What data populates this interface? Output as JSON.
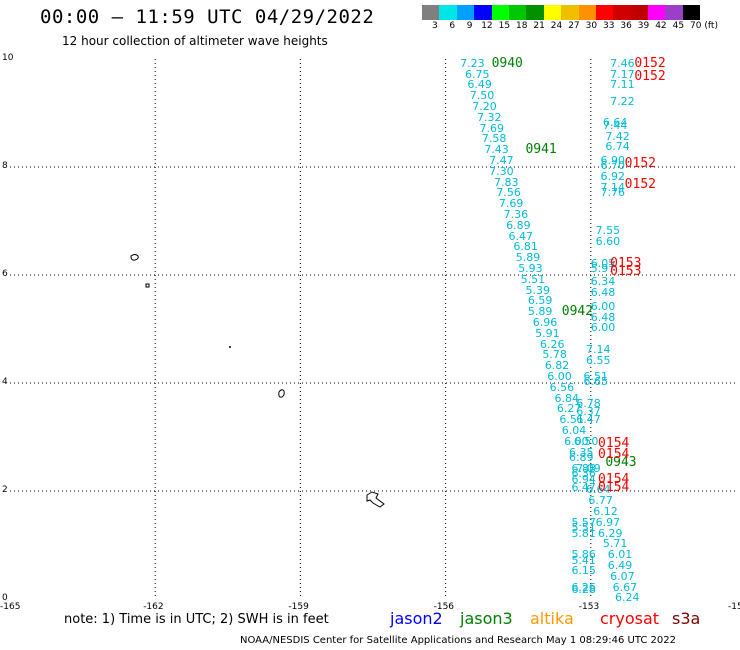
{
  "header": {
    "title": "00:00 — 11:59 UTC 04/29/2022",
    "subtitle": "12 hour collection of altimeter wave heights"
  },
  "color_scale": {
    "colors": [
      "#7f7f7f",
      "#00e5e5",
      "#00a0ff",
      "#0000ff",
      "#00ff00",
      "#00c800",
      "#009000",
      "#ffff00",
      "#f0c000",
      "#ff9000",
      "#ff0000",
      "#d00000",
      "#c00000",
      "#ff00ff",
      "#9a3fc8",
      "#000000"
    ],
    "labels": [
      "3",
      "6",
      "9",
      "12",
      "15",
      "18",
      "21",
      "24",
      "27",
      "30",
      "33",
      "36",
      "39",
      "42",
      "45",
      "70"
    ],
    "unit": "(ft)"
  },
  "axes": {
    "x_ticks": [
      "-165",
      "-162",
      "-159",
      "-156",
      "-153",
      "-15"
    ],
    "y_ticks": [
      "10",
      "8",
      "6",
      "4",
      "2",
      "0"
    ]
  },
  "chart_data": {
    "type": "scatter",
    "x_range": [
      -165,
      -150
    ],
    "y_range": [
      0,
      10
    ],
    "observations": [
      {
        "lon": -155.7,
        "lat": 9.93,
        "swh": "7.23"
      },
      {
        "lon": -155.6,
        "lat": 9.73,
        "swh": "6.75"
      },
      {
        "lon": -155.55,
        "lat": 9.53,
        "swh": "6.49"
      },
      {
        "lon": -155.5,
        "lat": 9.33,
        "swh": "7.50"
      },
      {
        "lon": -155.45,
        "lat": 9.13,
        "swh": "7.20"
      },
      {
        "lon": -155.35,
        "lat": 8.93,
        "swh": "7.32"
      },
      {
        "lon": -155.3,
        "lat": 8.73,
        "swh": "7.69"
      },
      {
        "lon": -155.25,
        "lat": 8.53,
        "swh": "7.58"
      },
      {
        "lon": -155.2,
        "lat": 8.33,
        "swh": "7.43"
      },
      {
        "lon": -155.1,
        "lat": 8.13,
        "swh": "7.47"
      },
      {
        "lon": -155.1,
        "lat": 7.93,
        "swh": "7.30"
      },
      {
        "lon": -155.0,
        "lat": 7.73,
        "swh": "7.83"
      },
      {
        "lon": -154.95,
        "lat": 7.53,
        "swh": "7.56"
      },
      {
        "lon": -154.9,
        "lat": 7.33,
        "swh": "7.69"
      },
      {
        "lon": -154.8,
        "lat": 7.13,
        "swh": "7.36"
      },
      {
        "lon": -154.75,
        "lat": 6.93,
        "swh": "6.89"
      },
      {
        "lon": -154.7,
        "lat": 6.73,
        "swh": "6.47"
      },
      {
        "lon": -154.6,
        "lat": 6.53,
        "swh": "6.81"
      },
      {
        "lon": -154.55,
        "lat": 6.33,
        "swh": "5.89"
      },
      {
        "lon": -154.5,
        "lat": 6.13,
        "swh": "5.93"
      },
      {
        "lon": -154.45,
        "lat": 5.93,
        "swh": "5.51"
      },
      {
        "lon": -154.35,
        "lat": 5.73,
        "swh": "5.39"
      },
      {
        "lon": -154.3,
        "lat": 5.53,
        "swh": "6.59"
      },
      {
        "lon": -154.3,
        "lat": 5.33,
        "swh": "5.89"
      },
      {
        "lon": -154.2,
        "lat": 5.13,
        "swh": "6.96"
      },
      {
        "lon": -154.15,
        "lat": 4.93,
        "swh": "5.91"
      },
      {
        "lon": -154.05,
        "lat": 4.73,
        "swh": "6.26"
      },
      {
        "lon": -154.0,
        "lat": 4.53,
        "swh": "5.78"
      },
      {
        "lon": -153.95,
        "lat": 4.33,
        "swh": "6.82"
      },
      {
        "lon": -153.9,
        "lat": 4.13,
        "swh": "6.00"
      },
      {
        "lon": -153.85,
        "lat": 3.93,
        "swh": "6.56"
      },
      {
        "lon": -153.75,
        "lat": 3.73,
        "swh": "6.84"
      },
      {
        "lon": -153.7,
        "lat": 3.53,
        "swh": "6.27"
      },
      {
        "lon": -153.65,
        "lat": 3.33,
        "swh": "6.51"
      },
      {
        "lon": -153.6,
        "lat": 3.13,
        "swh": "6.04"
      },
      {
        "lon": -153.55,
        "lat": 2.93,
        "swh": "6.00"
      },
      {
        "lon": -153.45,
        "lat": 2.73,
        "swh": "6.35"
      },
      {
        "lon": -153.45,
        "lat": 2.63,
        "swh": "6.89"
      },
      {
        "lon": -153.3,
        "lat": 2.43,
        "swh": "7.09"
      },
      {
        "lon": -153.4,
        "lat": 2.23,
        "swh": "6.94"
      },
      {
        "lon": -153.4,
        "lat": 2.08,
        "swh": "6.47"
      },
      {
        "lon": -153.1,
        "lat": 2.03,
        "swh": "6.64"
      },
      {
        "lon": -153.05,
        "lat": 1.83,
        "swh": "6.77"
      },
      {
        "lon": -152.95,
        "lat": 1.63,
        "swh": "6.12"
      },
      {
        "lon": -152.9,
        "lat": 1.43,
        "swh": "6.97"
      },
      {
        "lon": -152.85,
        "lat": 1.23,
        "swh": "6.29"
      },
      {
        "lon": -152.75,
        "lat": 1.03,
        "swh": "5.71"
      },
      {
        "lon": -152.65,
        "lat": 0.83,
        "swh": "6.01"
      },
      {
        "lon": -152.65,
        "lat": 0.63,
        "swh": "6.49"
      },
      {
        "lon": -152.6,
        "lat": 0.43,
        "swh": "6.07"
      },
      {
        "lon": -152.55,
        "lat": 0.23,
        "swh": "6.67"
      },
      {
        "lon": -152.5,
        "lat": 0.03,
        "swh": "6.24"
      },
      {
        "lon": -153.4,
        "lat": 1.43,
        "swh": "5.57"
      },
      {
        "lon": -153.4,
        "lat": 1.33,
        "swh": "5.51"
      },
      {
        "lon": -153.4,
        "lat": 1.23,
        "swh": "5.81"
      },
      {
        "lon": -153.4,
        "lat": 0.83,
        "swh": "5.86"
      },
      {
        "lon": -153.4,
        "lat": 0.73,
        "swh": "5.41"
      },
      {
        "lon": -153.4,
        "lat": 0.53,
        "swh": "6.15"
      },
      {
        "lon": -153.4,
        "lat": 0.23,
        "swh": "6.26"
      },
      {
        "lon": -153.4,
        "lat": 0.18,
        "swh": "6.28"
      },
      {
        "lon": -152.6,
        "lat": 9.93,
        "swh": "7.46"
      },
      {
        "lon": -152.6,
        "lat": 9.73,
        "swh": "7.17"
      },
      {
        "lon": -152.6,
        "lat": 9.53,
        "swh": "7.11"
      },
      {
        "lon": -152.6,
        "lat": 9.23,
        "swh": "7.22"
      },
      {
        "lon": -152.75,
        "lat": 8.83,
        "swh": "6.64"
      },
      {
        "lon": -152.75,
        "lat": 8.78,
        "swh": "7.44"
      },
      {
        "lon": -152.7,
        "lat": 8.58,
        "swh": "7.42"
      },
      {
        "lon": -152.7,
        "lat": 8.38,
        "swh": "6.74"
      },
      {
        "lon": -152.8,
        "lat": 8.13,
        "swh": "6.90"
      },
      {
        "lon": -152.8,
        "lat": 8.03,
        "swh": "6.70"
      },
      {
        "lon": -152.8,
        "lat": 7.83,
        "swh": "6.92"
      },
      {
        "lon": -152.8,
        "lat": 7.63,
        "swh": "7.14"
      },
      {
        "lon": -152.8,
        "lat": 7.53,
        "swh": "7.76"
      },
      {
        "lon": -152.9,
        "lat": 6.83,
        "swh": "7.55"
      },
      {
        "lon": -152.9,
        "lat": 6.63,
        "swh": "6.60"
      },
      {
        "lon": -153.0,
        "lat": 6.23,
        "swh": "6.05"
      },
      {
        "lon": -153.0,
        "lat": 6.13,
        "swh": "5.97"
      },
      {
        "lon": -153.0,
        "lat": 5.88,
        "swh": "6.34"
      },
      {
        "lon": -153.0,
        "lat": 5.68,
        "swh": "6.48"
      },
      {
        "lon": -153.0,
        "lat": 5.43,
        "swh": "6.00"
      },
      {
        "lon": -153.0,
        "lat": 5.23,
        "swh": "6.48"
      },
      {
        "lon": -153.0,
        "lat": 5.03,
        "swh": "6.00"
      },
      {
        "lon": -153.1,
        "lat": 4.63,
        "swh": "7.14"
      },
      {
        "lon": -153.1,
        "lat": 4.43,
        "swh": "6.55"
      },
      {
        "lon": -153.15,
        "lat": 4.13,
        "swh": "6.51"
      },
      {
        "lon": -153.15,
        "lat": 4.03,
        "swh": "6.65"
      },
      {
        "lon": -153.3,
        "lat": 3.63,
        "swh": "6.78"
      },
      {
        "lon": -153.3,
        "lat": 3.48,
        "swh": "6.37"
      },
      {
        "lon": -153.3,
        "lat": 3.33,
        "swh": "6.47"
      },
      {
        "lon": -153.35,
        "lat": 2.93,
        "swh": "6.50"
      },
      {
        "lon": -153.4,
        "lat": 2.43,
        "swh": "6.88"
      },
      {
        "lon": -153.4,
        "lat": 2.33,
        "swh": "6.36"
      }
    ],
    "track_labels": [
      {
        "lon": -155.05,
        "lat": 9.93,
        "label": "0940",
        "color": "#008000"
      },
      {
        "lon": -154.35,
        "lat": 8.33,
        "label": "0941",
        "color": "#008000"
      },
      {
        "lon": -153.6,
        "lat": 5.33,
        "label": "0942",
        "color": "#008000"
      },
      {
        "lon": -152.7,
        "lat": 2.53,
        "label": "0943",
        "color": "#008000"
      },
      {
        "lon": -152.1,
        "lat": 9.93,
        "label": "0152",
        "color": "#ff0000"
      },
      {
        "lon": -152.1,
        "lat": 9.68,
        "label": "0152",
        "color": "#ff0000"
      },
      {
        "lon": -152.3,
        "lat": 8.08,
        "label": "0152",
        "color": "#ff0000"
      },
      {
        "lon": -152.3,
        "lat": 7.68,
        "label": "0152",
        "color": "#ff0000"
      },
      {
        "lon": -152.6,
        "lat": 6.23,
        "label": "0153",
        "color": "#ff0000"
      },
      {
        "lon": -152.6,
        "lat": 6.08,
        "label": "0153",
        "color": "#ff0000"
      },
      {
        "lon": -152.85,
        "lat": 2.88,
        "label": "0154",
        "color": "#ff0000"
      },
      {
        "lon": -152.85,
        "lat": 2.68,
        "label": "0154",
        "color": "#ff0000"
      },
      {
        "lon": -152.85,
        "lat": 2.23,
        "label": "0154",
        "color": "#ff0000"
      },
      {
        "lon": -152.85,
        "lat": 2.08,
        "label": "0154",
        "color": "#ff0000"
      }
    ]
  },
  "footer": {
    "note": "note:  1) Time is in UTC;  2) SWH is in feet",
    "legend": [
      {
        "name": "jason2",
        "color": "#0000ff"
      },
      {
        "name": "jason3",
        "color": "#008000"
      },
      {
        "name": "altika",
        "color": "#ff9900"
      },
      {
        "name": "cryosat",
        "color": "#ff0000"
      },
      {
        "name": "s3a",
        "color": "#800000"
      }
    ],
    "credit": "NOAA/NESDIS Center for Satellite Applications and Research    May  1 08:29:46 UTC 2022"
  }
}
